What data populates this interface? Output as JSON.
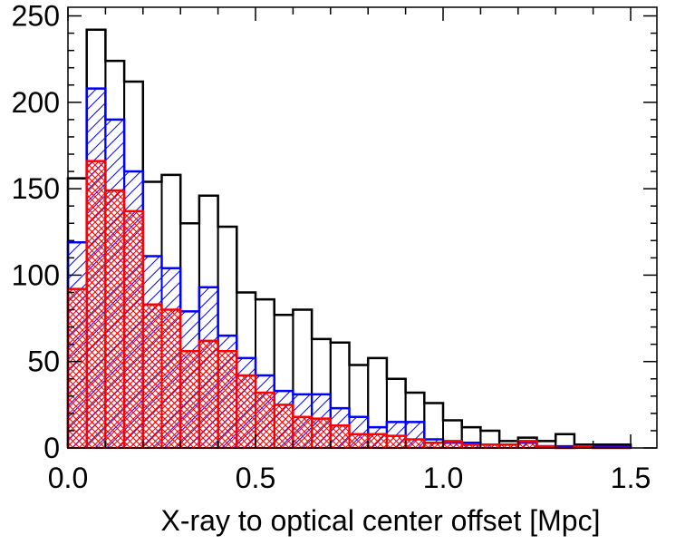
{
  "chart_data": {
    "type": "bar",
    "histogram": true,
    "bin_width": 0.05,
    "bin_starts": [
      0.0,
      0.05,
      0.1,
      0.15,
      0.2,
      0.25,
      0.3,
      0.35,
      0.4,
      0.45,
      0.5,
      0.55,
      0.6,
      0.65,
      0.7,
      0.75,
      0.8,
      0.85,
      0.9,
      0.95,
      1.0,
      1.05,
      1.1,
      1.15,
      1.2,
      1.25,
      1.3,
      1.35,
      1.4,
      1.45
    ],
    "series": [
      {
        "color": "#000000",
        "fill": "none",
        "values": [
          156,
          242,
          224,
          212,
          154,
          158,
          130,
          146,
          128,
          90,
          86,
          77,
          80,
          63,
          61,
          48,
          52,
          40,
          32,
          26,
          16,
          12,
          10,
          4,
          6,
          4,
          8,
          2,
          2,
          2
        ]
      },
      {
        "color": "#0000ff",
        "fill": "diagonal-hatch",
        "values": [
          119,
          208,
          190,
          160,
          111,
          104,
          79,
          93,
          65,
          52,
          42,
          33,
          31,
          31,
          23,
          18,
          12,
          15,
          15,
          5,
          3,
          3,
          2,
          2,
          3,
          1,
          1,
          1,
          1,
          1
        ]
      },
      {
        "color": "#ff0000",
        "fill": "cross-hatch",
        "values": [
          92,
          166,
          149,
          137,
          83,
          80,
          56,
          62,
          56,
          42,
          32,
          25,
          18,
          17,
          13,
          8,
          8,
          7,
          5,
          3,
          4,
          2,
          2,
          2,
          4,
          1,
          0,
          1,
          0,
          0
        ]
      }
    ],
    "xlabel": "X-ray to optical center offset [Mpc]",
    "ylabel": "",
    "xlim": [
      0.0,
      1.57
    ],
    "ylim": [
      0,
      255
    ],
    "xticks": [
      0.0,
      0.5,
      1.0,
      1.5
    ],
    "xtick_labels": [
      "0.0",
      "0.5",
      "1.0",
      "1.5"
    ],
    "yticks": [
      0,
      50,
      100,
      150,
      200,
      250
    ],
    "ytick_labels": [
      "0",
      "50",
      "100",
      "150",
      "200",
      "250"
    ],
    "grid": false,
    "legend": "none"
  }
}
